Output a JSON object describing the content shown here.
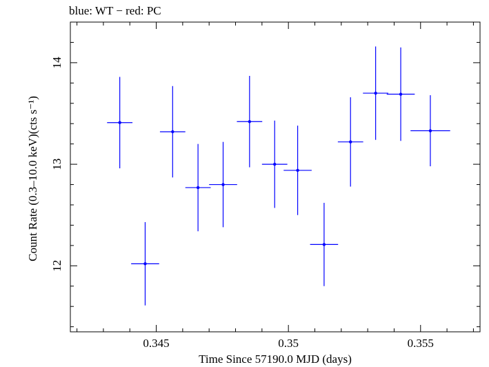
{
  "chart_data": {
    "type": "scatter",
    "title": "blue: WT − red: PC",
    "xlabel": "Time Since 57190.0 MJD (days)",
    "ylabel": "Count Rate (0.3–10.0 keV)(cts s⁻¹)",
    "xlim": [
      0.34175,
      0.35725
    ],
    "ylim": [
      11.35,
      14.4
    ],
    "grid": false,
    "x_ticks": [
      {
        "value": 0.345,
        "label": "0.345"
      },
      {
        "value": 0.35,
        "label": "0.35"
      },
      {
        "value": 0.355,
        "label": "0.355"
      }
    ],
    "y_ticks": [
      {
        "value": 12,
        "label": "12"
      },
      {
        "value": 13,
        "label": "13"
      },
      {
        "value": 14,
        "label": "14"
      }
    ],
    "series": [
      {
        "color": "#0000ff",
        "points": [
          {
            "x": 0.34362,
            "y": 13.41,
            "xerr": 0.00048,
            "yerr": 0.45
          },
          {
            "x": 0.34458,
            "y": 12.02,
            "xerr": 0.00053,
            "yerr": 0.41
          },
          {
            "x": 0.34562,
            "y": 13.32,
            "xerr": 0.00048,
            "yerr": 0.45
          },
          {
            "x": 0.34658,
            "y": 12.77,
            "xerr": 0.00048,
            "yerr": 0.43
          },
          {
            "x": 0.34753,
            "y": 12.8,
            "xerr": 0.00053,
            "yerr": 0.42
          },
          {
            "x": 0.34853,
            "y": 13.42,
            "xerr": 0.00048,
            "yerr": 0.45
          },
          {
            "x": 0.34948,
            "y": 13.0,
            "xerr": 0.00048,
            "yerr": 0.43
          },
          {
            "x": 0.35035,
            "y": 12.94,
            "xerr": 0.00053,
            "yerr": 0.44
          },
          {
            "x": 0.35135,
            "y": 12.21,
            "xerr": 0.00053,
            "yerr": 0.41
          },
          {
            "x": 0.35235,
            "y": 13.22,
            "xerr": 0.00048,
            "yerr": 0.44
          },
          {
            "x": 0.3533,
            "y": 13.7,
            "xerr": 0.00048,
            "yerr": 0.46
          },
          {
            "x": 0.35425,
            "y": 13.69,
            "xerr": 0.00053,
            "yerr": 0.46
          },
          {
            "x": 0.35537,
            "y": 13.33,
            "xerr": 0.00075,
            "yerr": 0.35
          }
        ]
      }
    ]
  }
}
